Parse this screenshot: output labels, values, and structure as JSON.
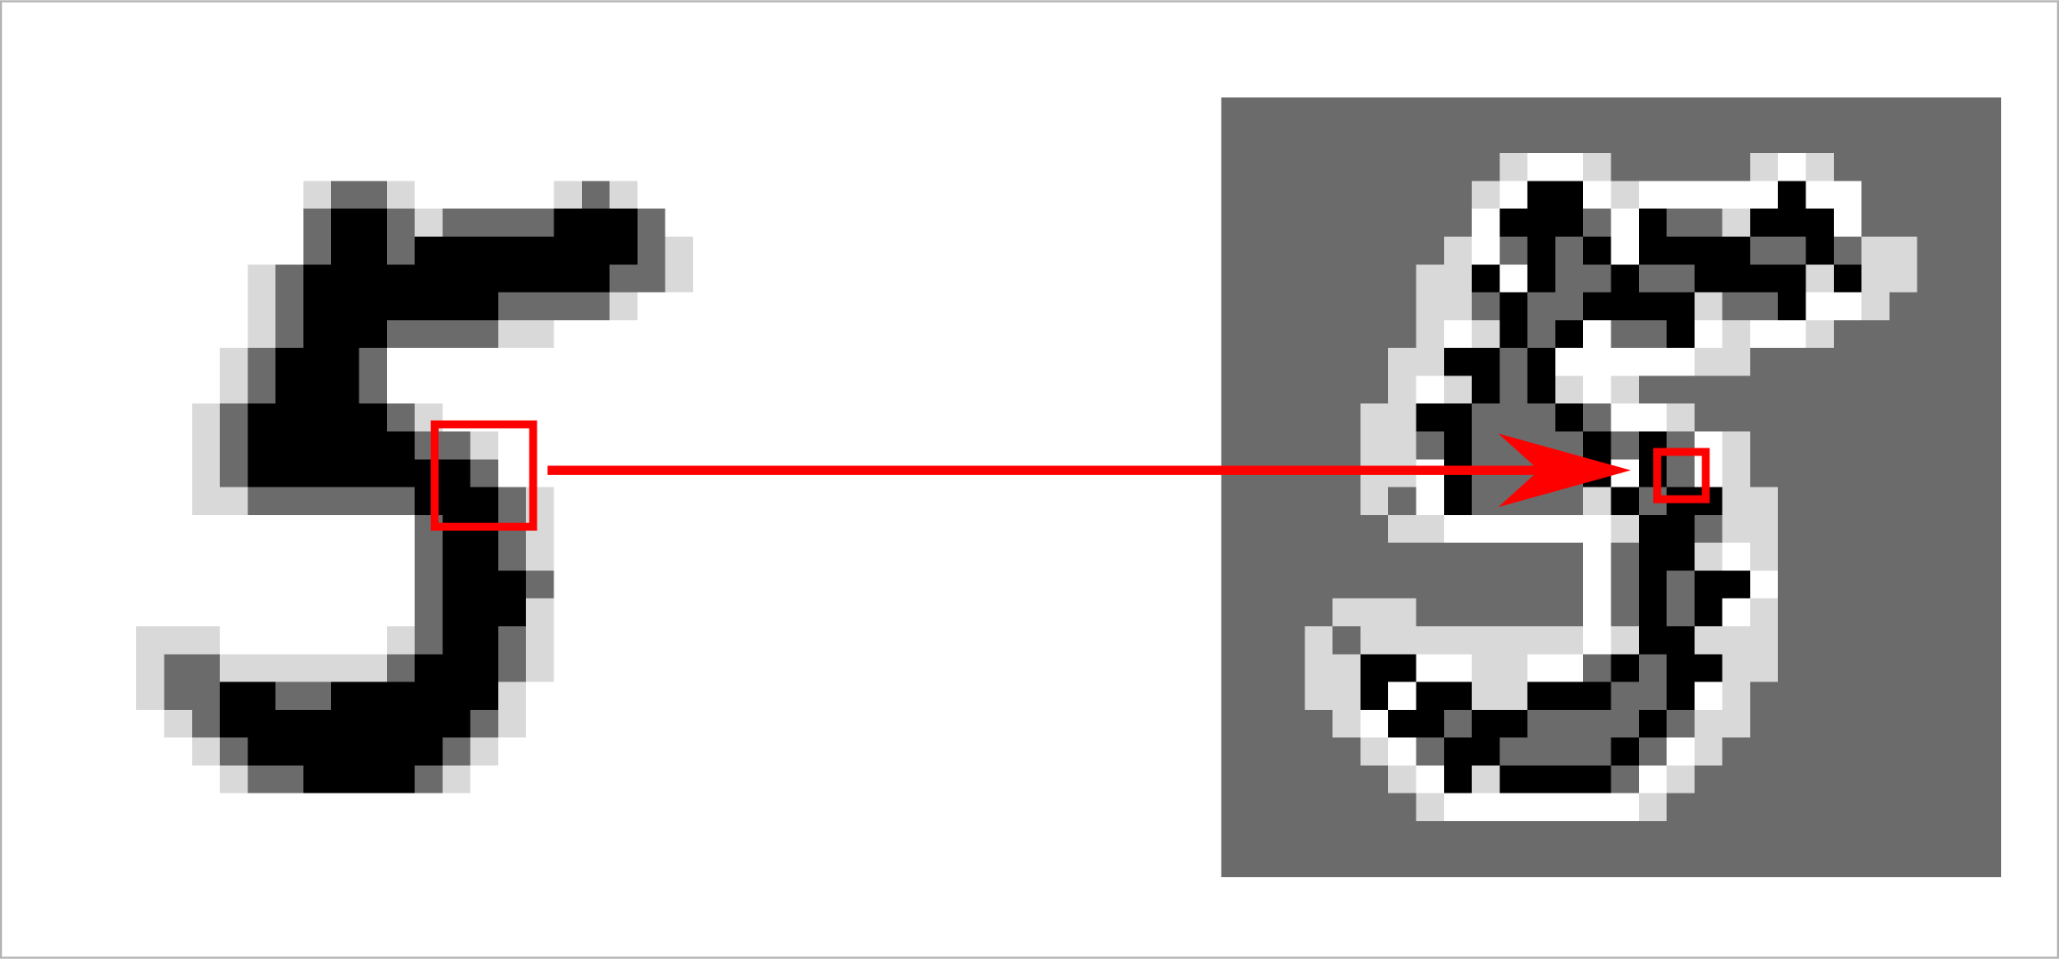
{
  "input_image": {
    "rows": [
      "0000000000000000000000000000",
      "0000000000000000000000000000",
      "0000000000000000000000000000",
      "0000000000122100000121000000",
      "0000000000233212222333200000",
      "0000000000233233333333210000",
      "0000000012333333333332210000",
      "0000000012333333322221000000",
      "0000000012333222211000000000",
      "0000000123332000000000000000",
      "0000000123332000000000000000",
      "0000001233333210000000000000",
      "0000001233333322100000000000",
      "0000001233333333200000000000",
      "0000001122222233321000000000",
      "0000000000000023321000000000",
      "0000000000000023321000000000",
      "0000000000000023332000000000",
      "0000000000000023331000000000",
      "0000111000000123321000000000",
      "0000122111111233321000000000",
      "0000122332233333310000000000",
      "0000012333333333210000000000",
      "0000001233333332100000000000",
      "0000000122333321000000000000",
      "0000000000000000000000000000",
      "0000000000000000000000000000",
      "0000000000000000000000000000"
    ]
  },
  "output_image": {
    "rows": [
      "2222222222222222222222222222",
      "2222222222222222222222222222",
      "2222222222100122222101222222",
      "2222222221033010000030022222",
      "2222222220333203221333022222",
      "2222222210232303333223211222",
      "2222222113032232233331311222",
      "2222222112322333312230012222",
      "2222222101323022301001222222",
      "2222221133230000011222222222",
      "2222221013231012222222222222",
      "2222211332223200122222222222",
      "2222211232222323201222222222",
      "2222211032222303201222222222",
      "2222212032222132331122222222",
      "2222221100000013321122222222",
      "2222222222222023310122222222",
      "2222222222222023233022222222",
      "2222111222222023230122222222",
      "2221211111111013311122222222",
      "2221133001100232331122222222",
      "2221130331133322301222222222",
      "2222103323322223211222222222",
      "2222210233222232012222222222",
      "2222221031333320122222222222",
      "2222222100000001222222222222",
      "2222222222222222222222222222",
      "2222222222222222222222222222"
    ]
  }
}
